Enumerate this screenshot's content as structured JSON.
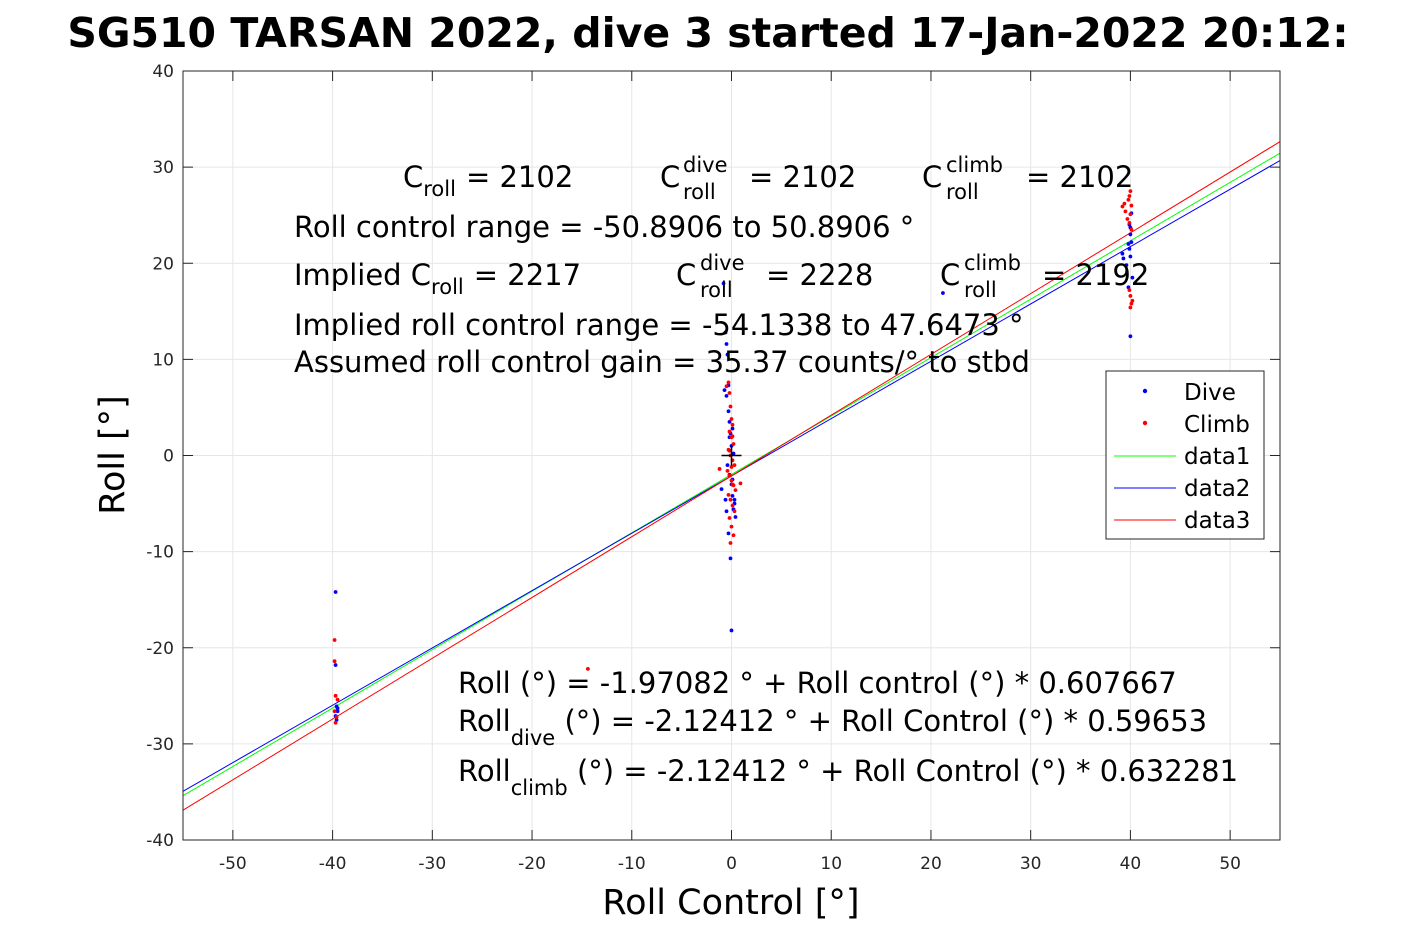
{
  "chart_data": {
    "type": "scatter",
    "title": "SG510 TARSAN 2022, dive 3 started 17-Jan-2022 20:12:",
    "xlabel": "Roll Control [°]",
    "ylabel": "Roll [°]",
    "xlim": [
      -55,
      55
    ],
    "ylim": [
      -40,
      40
    ],
    "xticks": [
      -50,
      -40,
      -30,
      -20,
      -10,
      0,
      10,
      20,
      30,
      40,
      50
    ],
    "xtick_labels": [
      "-50",
      "-40",
      "-30",
      "-20",
      "-10",
      "0",
      "10",
      "20",
      "30",
      "40",
      "50"
    ],
    "yticks": [
      -40,
      -30,
      -20,
      -10,
      0,
      10,
      20,
      30,
      40
    ],
    "ytick_labels": [
      "-40",
      "-30",
      "-20",
      "-10",
      "0",
      "10",
      "20",
      "30",
      "40"
    ],
    "grid": true,
    "legend_position": "right",
    "series": [
      {
        "name": "Dive",
        "kind": "scatter",
        "color": "#0000ff",
        "x": [
          -39.7,
          -39.7,
          -39.6,
          -39.5,
          -39.7,
          -39.6,
          -39.5,
          -0.8,
          -0.6,
          -0.5,
          -0.4,
          -0.3,
          -0.7,
          -0.5,
          -0.3,
          -0.2,
          -0.1,
          0,
          0.1,
          0.2,
          -0.4,
          -0.2,
          0,
          0.1,
          0.3,
          -1.0,
          -0.6,
          0.2,
          0.4,
          -0.3,
          -0.1,
          0.1,
          -0.5,
          0.3,
          0,
          -0.2,
          21.2,
          39.2,
          39.3,
          39.6,
          39.8,
          39.9,
          40.0,
          40.1,
          40.0,
          39.9,
          40.1,
          40.0,
          39.8,
          40.2,
          40.0
        ],
        "y": [
          -14.2,
          -21.8,
          -26.1,
          -26.6,
          -27.1,
          -27.5,
          -26.3,
          17.9,
          12.8,
          11.6,
          10.5,
          7.3,
          6.8,
          6.2,
          4.6,
          3.5,
          2.3,
          1.0,
          2.8,
          0.2,
          -1.0,
          -2.0,
          -3.0,
          -4.2,
          -5.0,
          -3.5,
          -4.6,
          -5.6,
          -6.4,
          -8.1,
          -10.7,
          -2.5,
          -5.8,
          -4.6,
          -18.2,
          1.9,
          16.9,
          21.0,
          20.5,
          19.8,
          22.0,
          21.5,
          23.0,
          22.2,
          20.7,
          24.0,
          25.2,
          12.4,
          17.5,
          18.5,
          23.7
        ]
      },
      {
        "name": "Climb",
        "kind": "scatter",
        "color": "#ff0000",
        "x": [
          -39.8,
          -39.8,
          -39.7,
          -39.8,
          -39.6,
          -39.7,
          -39.5,
          -14.4,
          -0.5,
          -0.3,
          -0.2,
          -0.1,
          0,
          0.1,
          -0.2,
          0,
          0.2,
          -0.3,
          -0.1,
          0.1,
          0.3,
          -0.4,
          -0.2,
          0,
          0.2,
          0.4,
          -0.3,
          -0.1,
          0.1,
          0.3,
          -0.2,
          0,
          0.2,
          -0.1,
          0.1,
          0,
          -0.2,
          0.1,
          -1.2,
          0.9,
          39.2,
          39.4,
          39.5,
          39.7,
          39.8,
          39.9,
          40.0,
          40.1,
          40.0,
          39.9,
          40.1,
          40.0,
          40.2,
          40.1,
          39.9,
          40.0
        ],
        "y": [
          -19.2,
          -21.4,
          -25.0,
          -26.6,
          -27.2,
          -27.8,
          -25.4,
          -22.2,
          7.2,
          7.6,
          6.5,
          5.1,
          3.8,
          3.2,
          2.5,
          1.9,
          1.2,
          0.6,
          0.0,
          -0.5,
          -1.0,
          -1.6,
          -2.1,
          -2.6,
          -3.1,
          -3.6,
          -4.1,
          -4.6,
          -5.2,
          -5.8,
          -6.5,
          -7.4,
          -8.3,
          -9.1,
          -3.0,
          -1.2,
          0.5,
          2.0,
          -1.4,
          -2.9,
          25.9,
          26.2,
          25.4,
          24.6,
          26.6,
          27.0,
          27.5,
          26.0,
          25.1,
          24.2,
          23.5,
          16.6,
          16.1,
          15.8,
          17.2,
          15.4
        ]
      },
      {
        "name": "data1",
        "kind": "line",
        "color": "#00ff00",
        "x": [
          -55,
          55
        ],
        "y": [
          -35.39,
          31.45
        ]
      },
      {
        "name": "data2",
        "kind": "line",
        "color": "#0000ff",
        "x": [
          -55,
          55
        ],
        "y": [
          -34.93,
          30.68
        ]
      },
      {
        "name": "data3",
        "kind": "line",
        "color": "#ff0000",
        "x": [
          -55,
          55
        ],
        "y": [
          -36.9,
          32.65
        ]
      }
    ],
    "crosshair": {
      "x": 0,
      "y": 0
    },
    "annotations": {
      "c_roll": {
        "base": "C",
        "sub": "roll",
        "value": "= 2102"
      },
      "c_roll_dive": {
        "base": "C",
        "sup": "dive",
        "sub": "roll",
        "value": "= 2102"
      },
      "c_roll_climb": {
        "base": "C",
        "sup": "climb",
        "sub": "roll",
        "value": "= 2102"
      },
      "range_text": "Roll control range = -50.8906 to 50.8906 °",
      "implied_prefix": "Implied C",
      "implied_sub": "roll",
      "implied_value": "= 2217",
      "implied_dive": {
        "base": "C",
        "sup": "dive",
        "sub": "roll",
        "value": "= 2228"
      },
      "implied_climb": {
        "base": "C",
        "sup": "climb",
        "sub": "roll",
        "value": "= 2192"
      },
      "implied_range_text": "Implied roll control range = -54.1338 to 47.6473 °",
      "gain_text": "Assumed roll control gain = 35.37 counts/° to stbd",
      "fit_overall": "Roll (°) = -1.97082 ° + Roll control (°) * 0.607667",
      "fit_dive_base": "Roll",
      "fit_dive_sub": "dive",
      "fit_dive_rest": " (°) = -2.12412 ° + Roll Control (°) * 0.59653",
      "fit_climb_base": "Roll",
      "fit_climb_sub": "climb",
      "fit_climb_rest": " (°) = -2.12412 ° + Roll Control (°) * 0.632281"
    }
  }
}
